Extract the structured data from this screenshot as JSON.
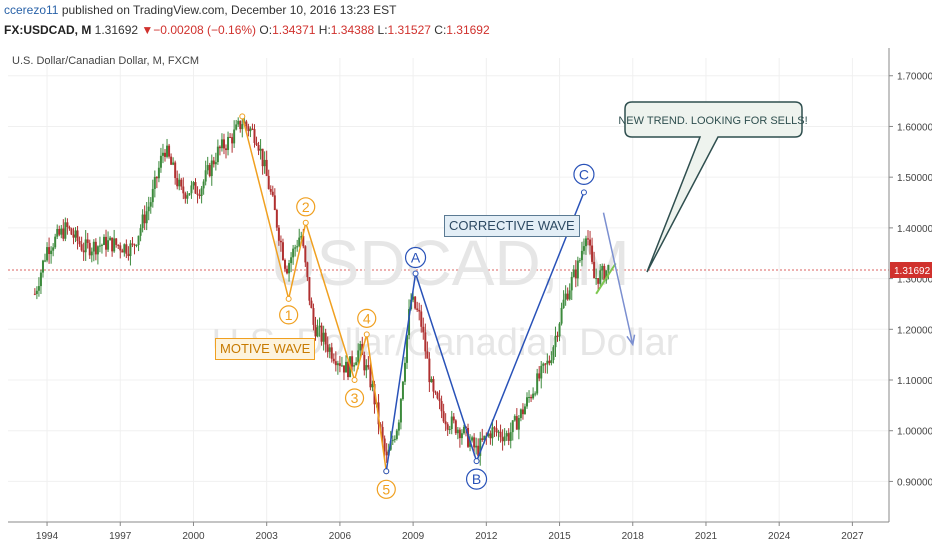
{
  "header": {
    "author": "ccerezo11",
    "published_text": " published on TradingView.com, December 10, 2016 13:23 EST",
    "symbol": "FX:USDCAD, M",
    "last": "1.31692",
    "change": "−0.00208 (−0.16%)",
    "o_label": "O:",
    "o_value": "1.34371",
    "h_label": "H:",
    "h_value": "1.34388",
    "l_label": "L:",
    "l_value": "1.31527",
    "c_label": "C:",
    "c_value": "1.31692"
  },
  "chart_title": "U.S. Dollar/Canadian Dollar, M, FXCM",
  "watermark": {
    "symbol": "USDCAD, M",
    "name": "U.S. Dollar/Canadian Dollar"
  },
  "annotations": {
    "motive": "MOTIVE WAVE",
    "corrective": "CORRECTIVE WAVE",
    "callout": "NEW TREND. LOOKING FOR SELLS!"
  },
  "colors": {
    "bull": "#3c8a3c",
    "bear": "#b03030",
    "motive": "#f0a020",
    "corrective": "#2952b8",
    "forecast": "#7b8fd0",
    "price_line": "#d0312d",
    "callout_stroke": "#2f4f4f",
    "callout_fill": "#eef3ee",
    "watermark": "#e6e6e6"
  },
  "chart_data": {
    "type": "candlestick",
    "title": "U.S. Dollar/Canadian Dollar, M, FXCM",
    "y_ticks": [
      "0.90000",
      "1.00000",
      "1.10000",
      "1.20000",
      "1.30000",
      "1.40000",
      "1.50000",
      "1.60000",
      "1.70000"
    ],
    "x_ticks": [
      "1994",
      "1997",
      "2000",
      "2003",
      "2006",
      "2009",
      "2012",
      "2015",
      "2018",
      "2021",
      "2024",
      "2027"
    ],
    "x_range": [
      1992.4,
      2028.5
    ],
    "y_range": [
      0.82,
      1.735
    ],
    "current_price": 1.31692,
    "current_price_label": "1.31692",
    "price_path": [
      [
        1993.5,
        1.27
      ],
      [
        1994.0,
        1.36
      ],
      [
        1994.8,
        1.4
      ],
      [
        1995.5,
        1.36
      ],
      [
        1996.5,
        1.37
      ],
      [
        1997.5,
        1.36
      ],
      [
        1998.3,
        1.46
      ],
      [
        1998.8,
        1.56
      ],
      [
        1999.5,
        1.47
      ],
      [
        2000.3,
        1.48
      ],
      [
        2001.0,
        1.55
      ],
      [
        2001.6,
        1.58
      ],
      [
        2002.0,
        1.61
      ],
      [
        2002.6,
        1.58
      ],
      [
        2003.2,
        1.46
      ],
      [
        2003.8,
        1.32
      ],
      [
        2004.4,
        1.39
      ],
      [
        2004.9,
        1.21
      ],
      [
        2005.6,
        1.16
      ],
      [
        2006.3,
        1.12
      ],
      [
        2006.8,
        1.16
      ],
      [
        2007.3,
        1.09
      ],
      [
        2007.9,
        0.94
      ],
      [
        2008.4,
        1.02
      ],
      [
        2008.9,
        1.26
      ],
      [
        2009.3,
        1.22
      ],
      [
        2009.8,
        1.07
      ],
      [
        2010.4,
        1.02
      ],
      [
        2011.0,
        1.0
      ],
      [
        2011.6,
        0.96
      ],
      [
        2012.2,
        1.0
      ],
      [
        2012.9,
        0.99
      ],
      [
        2013.5,
        1.04
      ],
      [
        2014.0,
        1.09
      ],
      [
        2014.6,
        1.14
      ],
      [
        2015.2,
        1.26
      ],
      [
        2015.8,
        1.33
      ],
      [
        2016.1,
        1.4
      ],
      [
        2016.4,
        1.3
      ],
      [
        2016.8,
        1.31
      ],
      [
        2017.0,
        1.32
      ]
    ],
    "motive_wave": [
      {
        "label": "",
        "x": 2002.0,
        "y": 1.62
      },
      {
        "label": "1",
        "x": 2003.9,
        "y": 1.26
      },
      {
        "label": "2",
        "x": 2004.6,
        "y": 1.41
      },
      {
        "label": "3",
        "x": 2006.6,
        "y": 1.1
      },
      {
        "label": "4",
        "x": 2007.1,
        "y": 1.19
      },
      {
        "label": "5",
        "x": 2007.9,
        "y": 0.92
      }
    ],
    "corrective_wave": [
      {
        "label": "",
        "x": 2007.9,
        "y": 0.92
      },
      {
        "label": "A",
        "x": 2009.1,
        "y": 1.31
      },
      {
        "label": "B",
        "x": 2011.6,
        "y": 0.94
      },
      {
        "label": "C",
        "x": 2016.0,
        "y": 1.47
      }
    ],
    "forecast": [
      [
        2016.8,
        1.43
      ],
      [
        2018.0,
        1.17
      ]
    ],
    "green_trend": [
      [
        2016.5,
        1.27
      ],
      [
        2017.3,
        1.33
      ]
    ]
  }
}
